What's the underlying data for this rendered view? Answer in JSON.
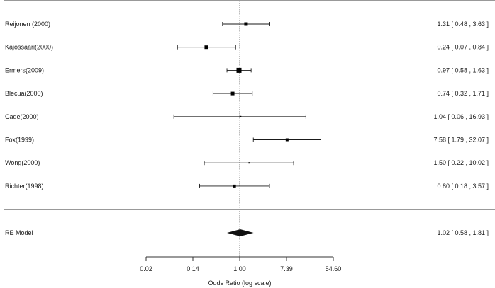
{
  "chart_data": {
    "type": "forest",
    "xlabel": "Odds Ratio (log scale)",
    "x_scale": "log",
    "x_ticks": [
      {
        "value": 0.0183,
        "label": "0.02"
      },
      {
        "value": 0.1353,
        "label": "0.14"
      },
      {
        "value": 1.0,
        "label": "1.00"
      },
      {
        "value": 7.389,
        "label": "7.39"
      },
      {
        "value": 54.598,
        "label": "54.60"
      }
    ],
    "xlim": [
      0.0183,
      54.598
    ],
    "reference_line": 1.0,
    "studies": [
      {
        "label": "Reijonen (2000)",
        "or": 1.31,
        "lower": 0.48,
        "upper": 3.63,
        "weight": "medium",
        "ci_text": "1.31 [ 0.48 ,  3.63 ]"
      },
      {
        "label": "Kajossaari(2000)",
        "or": 0.24,
        "lower": 0.07,
        "upper": 0.84,
        "weight": "medium",
        "ci_text": "0.24 [ 0.07 ,  0.84 ]"
      },
      {
        "label": "Ermers(2009)",
        "or": 0.97,
        "lower": 0.58,
        "upper": 1.63,
        "weight": "large",
        "ci_text": "0.97 [ 0.58 ,  1.63 ]"
      },
      {
        "label": "Blecua(2000)",
        "or": 0.74,
        "lower": 0.32,
        "upper": 1.71,
        "weight": "medium",
        "ci_text": "0.74 [ 0.32 ,  1.71 ]"
      },
      {
        "label": "Cade(2000)",
        "or": 1.04,
        "lower": 0.06,
        "upper": 16.93,
        "weight": "tiny",
        "ci_text": "1.04 [ 0.06 , 16.93 ]"
      },
      {
        "label": "Fox(1999)",
        "or": 7.58,
        "lower": 1.79,
        "upper": 32.07,
        "weight": "small",
        "ci_text": "7.58 [ 1.79 , 32.07 ]"
      },
      {
        "label": "Wong(2000)",
        "or": 1.5,
        "lower": 0.22,
        "upper": 10.02,
        "weight": "tiny",
        "ci_text": "1.50 [ 0.22 , 10.02 ]"
      },
      {
        "label": "Richter(1998)",
        "or": 0.8,
        "lower": 0.18,
        "upper": 3.57,
        "weight": "small",
        "ci_text": "0.80 [ 0.18 ,  3.57 ]"
      }
    ],
    "summary": {
      "label": "RE Model",
      "or": 1.02,
      "lower": 0.58,
      "upper": 1.81,
      "ci_text": "1.02 [ 0.58 ,  1.81 ]"
    },
    "colors": {
      "ink": "#1a1a1a"
    }
  }
}
